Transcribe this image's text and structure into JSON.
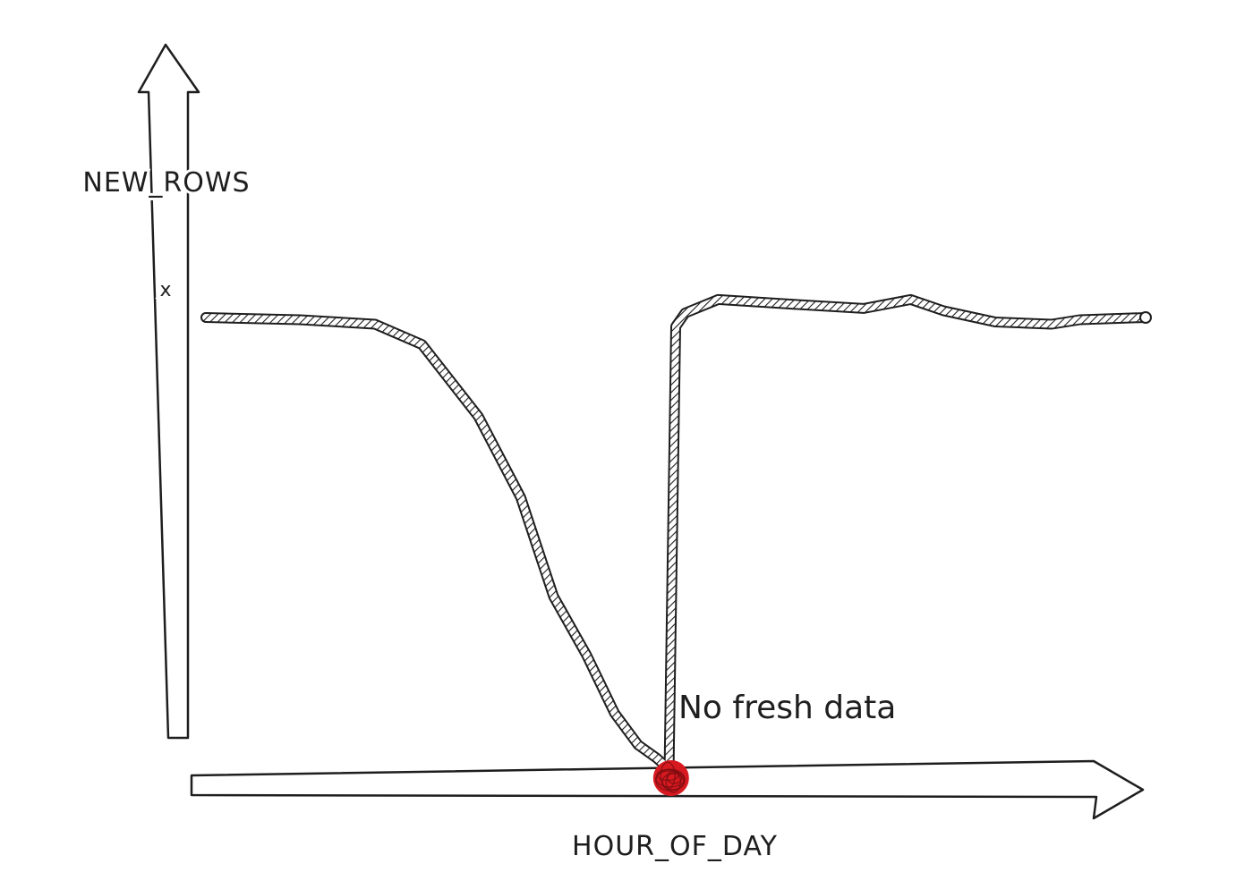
{
  "chart_data": {
    "type": "line",
    "title": "",
    "xlabel": "HOUR_OF_DAY",
    "ylabel": "NEW_ROWS",
    "y_tick_label": "x",
    "grid": false,
    "legend": "none",
    "series": [
      {
        "values_x": [
          0.0,
          1.0,
          1.8,
          2.3,
          2.9,
          3.35,
          3.7,
          4.05,
          4.35,
          4.6,
          4.8,
          4.88,
          4.93,
          4.95,
          5.0,
          5.1,
          5.45,
          6.2,
          7.0,
          7.5,
          7.85,
          8.4,
          9.0,
          9.3,
          10.0
        ],
        "values_y": [
          1.0,
          0.995,
          0.985,
          0.94,
          0.78,
          0.6,
          0.38,
          0.25,
          0.12,
          0.05,
          0.02,
          0.005,
          0.0,
          0.3,
          0.98,
          1.01,
          1.04,
          1.03,
          1.02,
          1.04,
          1.015,
          0.99,
          0.985,
          0.995,
          1.0
        ]
      }
    ],
    "annotation": {
      "text": "No fresh data",
      "x": 4.95,
      "y": 0.0
    },
    "colors": {
      "line": "#1e1e1e",
      "marker": "#d71920",
      "axis": "#1e1e1e"
    }
  }
}
